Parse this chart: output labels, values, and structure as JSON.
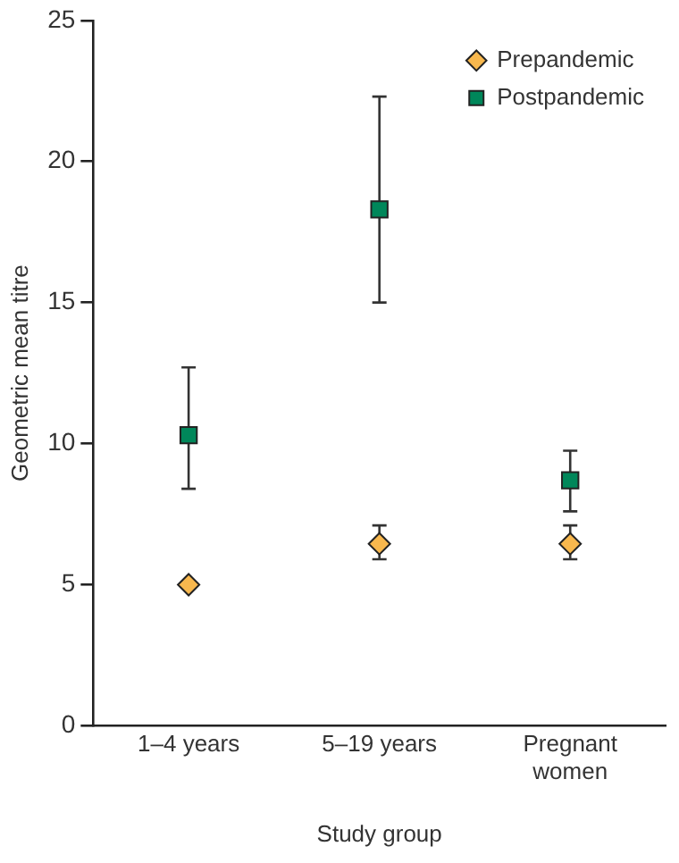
{
  "chart_data": {
    "type": "scatter",
    "xlabel": "Study group",
    "ylabel": "Geometric mean titre",
    "categories": [
      "1–4 years",
      "5–19 years",
      "Pregnant women"
    ],
    "series": [
      {
        "name": "Prepandemic",
        "color": "#f8b84e",
        "marker": "diamond",
        "values": [
          5.0,
          6.45,
          6.45
        ],
        "errors": [
          null,
          [
            5.9,
            7.1
          ],
          [
            5.9,
            7.1
          ]
        ]
      },
      {
        "name": "Postpandemic",
        "color": "#00875a",
        "marker": "square",
        "values": [
          10.3,
          18.3,
          8.7
        ],
        "errors": [
          [
            8.4,
            12.7
          ],
          [
            15.0,
            22.3
          ],
          [
            7.6,
            9.75
          ]
        ]
      }
    ],
    "ylim": [
      0,
      25
    ],
    "yticks": [
      0,
      5,
      10,
      15,
      20,
      25
    ],
    "grid": false,
    "legend": "top right"
  }
}
